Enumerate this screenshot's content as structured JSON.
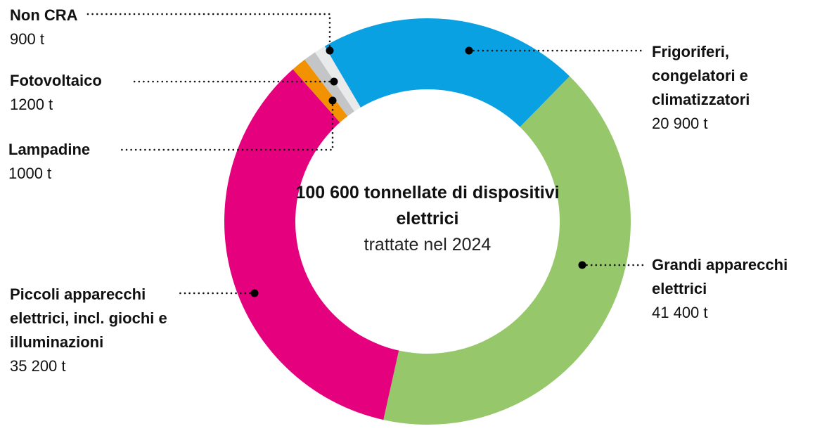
{
  "chart_data": {
    "type": "pie",
    "variant": "donut",
    "title": "100 600 tonnellate di dispositivi elettrici",
    "subtitle": "trattate nel 2024",
    "unit": "t",
    "total": 100600,
    "slices": [
      {
        "name": "Frigoriferi, congelatori e climatizzatori",
        "label_lines": [
          "Frigoriferi,",
          "congelatori e",
          "climatizzatori"
        ],
        "value": 20900,
        "value_label": "20 900 t",
        "color": "#0aa1e2"
      },
      {
        "name": "Grandi apparecchi elettrici",
        "label_lines": [
          "Grandi apparecchi",
          "elettrici"
        ],
        "value": 41400,
        "value_label": "41 400 t",
        "color": "#97c76b"
      },
      {
        "name": "Piccoli apparecchi elettrici, incl. giochi e illuminazioni",
        "label_lines": [
          "Piccoli apparecchi",
          "elettrici, incl. giochi e",
          "illuminazioni"
        ],
        "value": 35200,
        "value_label": "35 200 t",
        "color": "#e5007e"
      },
      {
        "name": "Fotovoltaico",
        "label_lines": [
          "Fotovoltaico"
        ],
        "value": 1200,
        "value_label": "1200 t",
        "color": "#f39200"
      },
      {
        "name": "Lampadine",
        "label_lines": [
          "Lampadine"
        ],
        "value": 1000,
        "value_label": "1000 t",
        "color": "#c3c5c6"
      },
      {
        "name": "Non CRA",
        "label_lines": [
          "Non CRA"
        ],
        "value": 900,
        "value_label": "900 t",
        "color": "#e9eaea"
      }
    ]
  }
}
